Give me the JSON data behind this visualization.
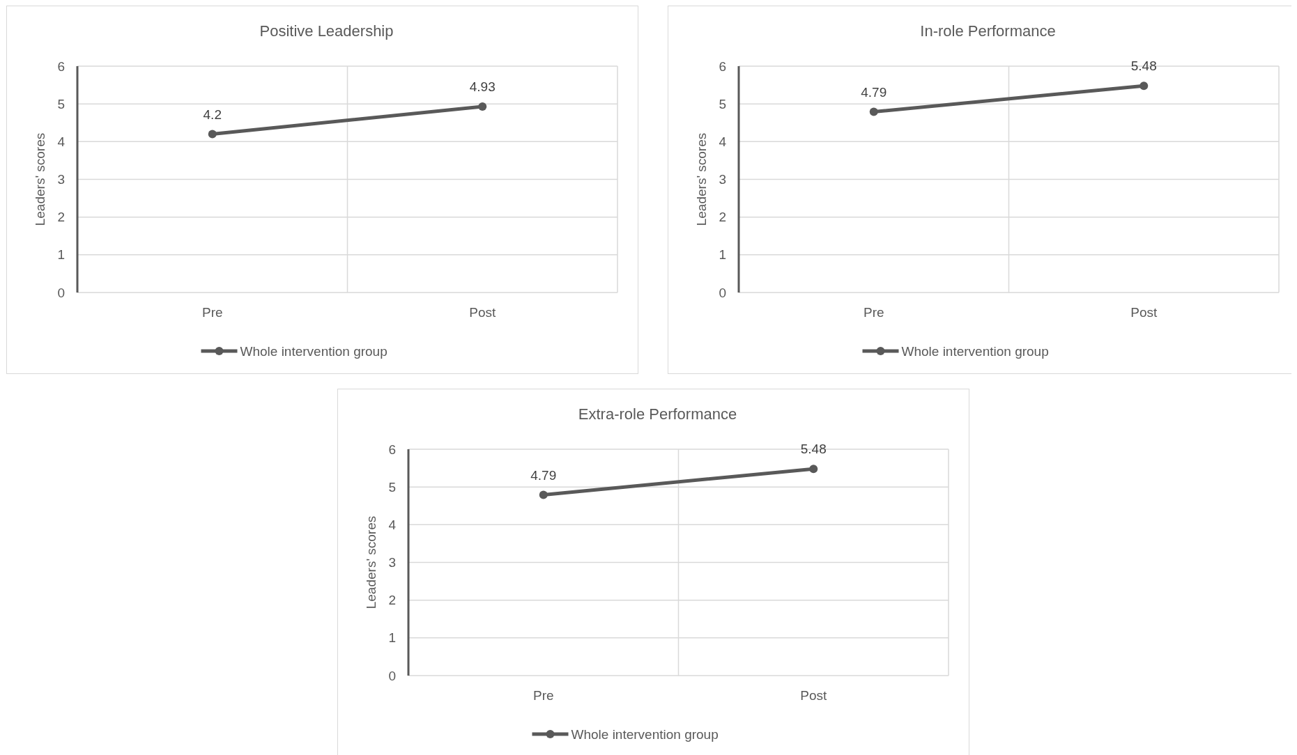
{
  "chart_data": [
    {
      "type": "line",
      "title": "Positive Leadership",
      "ylabel": "Leaders' scores",
      "categories": [
        "Pre",
        "Post"
      ],
      "series": [
        {
          "name": "Whole intervention group",
          "color": "#595959",
          "values": [
            4.2,
            4.93
          ]
        }
      ],
      "ylim": [
        0,
        6
      ],
      "yticks": [
        0,
        1,
        2,
        3,
        4,
        5,
        6
      ],
      "grid": true,
      "legend": "bottom",
      "marker": "circle",
      "data_labels": true
    },
    {
      "type": "line",
      "title": "In-role Performance",
      "ylabel": "Leaders' scores",
      "categories": [
        "Pre",
        "Post"
      ],
      "series": [
        {
          "name": "Whole intervention group",
          "color": "#595959",
          "values": [
            4.79,
            5.48
          ]
        }
      ],
      "ylim": [
        0,
        6
      ],
      "yticks": [
        0,
        1,
        2,
        3,
        4,
        5,
        6
      ],
      "grid": true,
      "legend": "bottom",
      "marker": "circle",
      "data_labels": true
    },
    {
      "type": "line",
      "title": "Extra-role Performance",
      "ylabel": "Leaders' scores",
      "categories": [
        "Pre",
        "Post"
      ],
      "series": [
        {
          "name": "Whole intervention group",
          "color": "#595959",
          "values": [
            4.79,
            5.48
          ]
        }
      ],
      "ylim": [
        0,
        6
      ],
      "yticks": [
        0,
        1,
        2,
        3,
        4,
        5,
        6
      ],
      "grid": true,
      "legend": "bottom",
      "marker": "circle",
      "data_labels": true
    }
  ]
}
